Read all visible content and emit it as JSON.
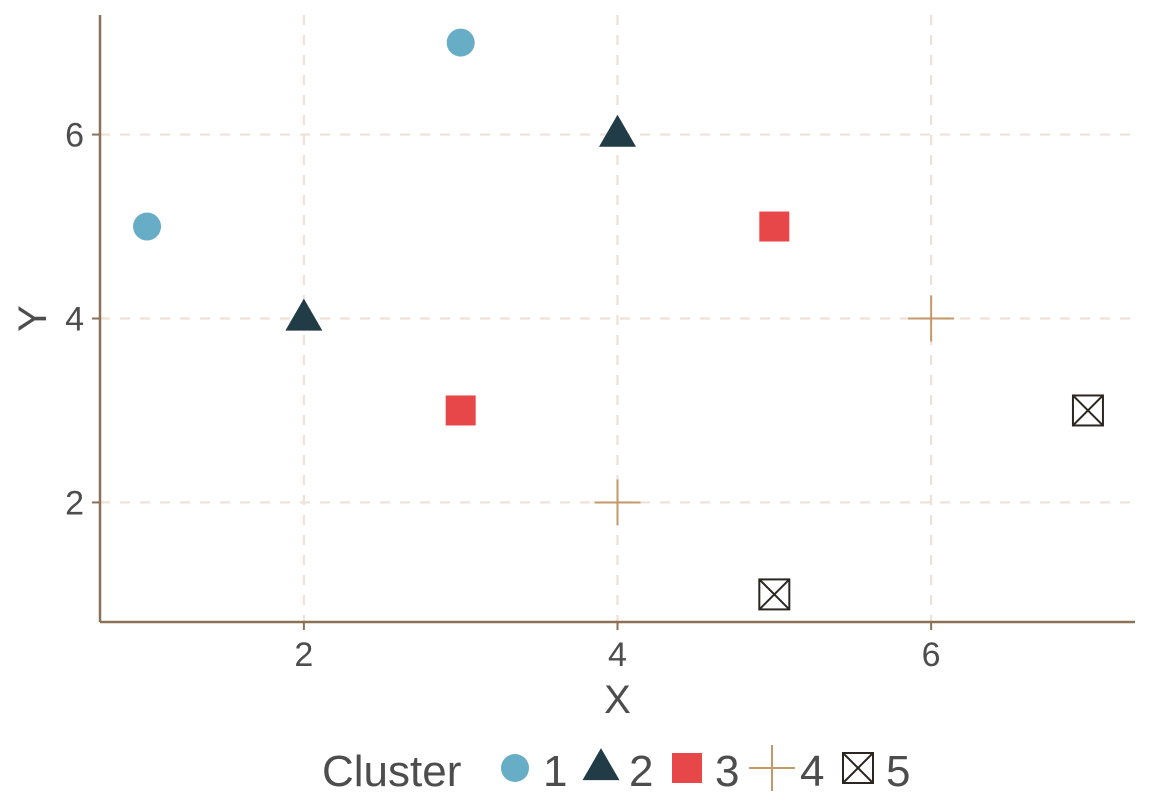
{
  "chart_data": {
    "type": "scatter",
    "title": "",
    "xlabel": "X",
    "ylabel": "Y",
    "xlim": [
      0.7,
      7.3
    ],
    "ylim": [
      0.7,
      7.3
    ],
    "x_ticks": [
      2,
      4,
      6
    ],
    "y_ticks": [
      2,
      4,
      6
    ],
    "x_tick_labels": [
      "2",
      "4",
      "6"
    ],
    "y_tick_labels": [
      "2",
      "4",
      "6"
    ],
    "grid": true,
    "legend_title": "Cluster",
    "legend_position": "bottom",
    "series": [
      {
        "name": "1",
        "shape": "circle",
        "color": "#67adc6",
        "points": [
          [
            1,
            5
          ],
          [
            3,
            7
          ]
        ]
      },
      {
        "name": "2",
        "shape": "triangle",
        "color": "#223c47",
        "points": [
          [
            2,
            4
          ],
          [
            4,
            6
          ]
        ]
      },
      {
        "name": "3",
        "shape": "square",
        "color": "#e84749",
        "points": [
          [
            3,
            3
          ],
          [
            5,
            5
          ]
        ]
      },
      {
        "name": "4",
        "shape": "plus",
        "color": "#c49a6c",
        "points": [
          [
            4,
            2
          ],
          [
            6,
            4
          ]
        ]
      },
      {
        "name": "5",
        "shape": "boxed-x",
        "color": "#2b2620",
        "points": [
          [
            5,
            1
          ],
          [
            7,
            3
          ]
        ]
      }
    ],
    "colors": {
      "axis": "#8b7256",
      "grid": "#f0e0d6",
      "text": "#4d4d4d"
    }
  }
}
